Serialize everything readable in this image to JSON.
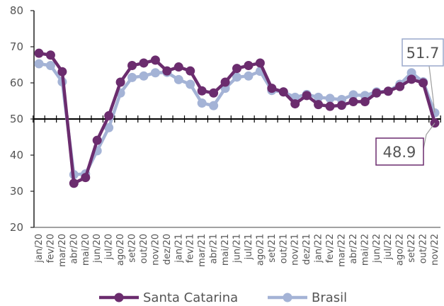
{
  "chart_data": {
    "type": "line",
    "title": "",
    "xlabel": "",
    "ylabel": "",
    "ylim": [
      20,
      80
    ],
    "yticks": [
      20,
      30,
      40,
      50,
      60,
      70,
      80
    ],
    "reference_line": 50,
    "grid": false,
    "legend_position": "bottom",
    "categories": [
      "jan/20",
      "fev/20",
      "mar/20",
      "abr/20",
      "mai/20",
      "jun/20",
      "jul/20",
      "ago/20",
      "set/20",
      "out/20",
      "nov/20",
      "dez/20",
      "jan/21",
      "fev/21",
      "mar/21",
      "abr/21",
      "mai/21",
      "jun/21",
      "jul/21",
      "ago/21",
      "set/21",
      "out/21",
      "nov/21",
      "dez/21",
      "jan/22",
      "fev/22",
      "mar/22",
      "abr/22",
      "mai/22",
      "jun/22",
      "jul/22",
      "ago/22",
      "set/22",
      "out/22",
      "nov/22"
    ],
    "series": [
      {
        "name": "Santa Catarina",
        "color": "#6b2c6e",
        "values": [
          68.2,
          67.7,
          63.1,
          32.2,
          33.8,
          44.1,
          50.9,
          60.2,
          64.8,
          65.5,
          66.3,
          63.3,
          64.4,
          63.3,
          57.8,
          57.2,
          60.2,
          64.0,
          64.8,
          65.5,
          58.5,
          57.5,
          54.2,
          56.5,
          54.0,
          53.5,
          53.8,
          54.8,
          54.8,
          57.2,
          57.7,
          59.0,
          61.0,
          60.0,
          48.9
        ]
      },
      {
        "name": "Brasil",
        "color": "#a4b3d6",
        "values": [
          65.3,
          64.8,
          60.3,
          34.6,
          34.8,
          41.2,
          47.6,
          57.2,
          61.5,
          61.9,
          62.8,
          62.9,
          60.9,
          59.6,
          54.4,
          53.7,
          58.5,
          61.6,
          61.9,
          63.2,
          57.9,
          57.5,
          56.0,
          56.8,
          56.0,
          55.7,
          55.4,
          56.7,
          56.5,
          57.5,
          57.7,
          59.6,
          62.8,
          60.3,
          51.7
        ]
      }
    ],
    "annotations": [
      {
        "series": "Brasil",
        "label": "51.7"
      },
      {
        "series": "Santa Catarina",
        "label": "48.9"
      }
    ]
  }
}
